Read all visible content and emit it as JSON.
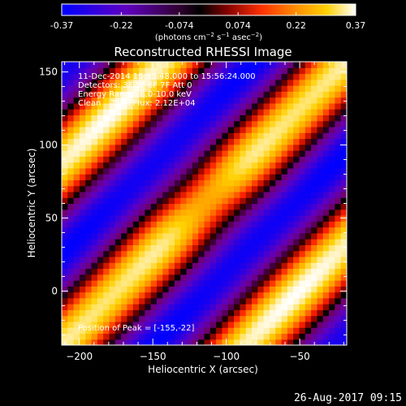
{
  "chart_data": {
    "type": "heatmap",
    "title": "Reconstructed RHESSI Image",
    "xlabel": "Heliocentric X (arcsec)",
    "ylabel": "Heliocentric Y (arcsec)",
    "xlim": [
      -212,
      -18
    ],
    "ylim": [
      -37,
      157
    ],
    "x_ticks": [
      -200,
      -150,
      -100,
      -50
    ],
    "y_ticks": [
      0,
      50,
      100,
      150
    ],
    "colorbar": {
      "ticks": [
        "-0.37",
        "-0.22",
        "-0.074",
        "0.074",
        "0.22",
        "0.37"
      ],
      "tick_values": [
        -0.37,
        -0.22,
        -0.074,
        0.074,
        0.22,
        0.37
      ],
      "range": [
        -0.37,
        0.37
      ],
      "unit_label": "(photons cm",
      "unit_sup1": "−2",
      "unit_mid": " s",
      "unit_sup2": "−1",
      "unit_mid2": " asec",
      "unit_sup3": "−2",
      "unit_end": ")"
    },
    "annotations": {
      "time": "11-Dec-2014 15:55:48.000 to 15:56:24.000",
      "detectors": "Detectors: 3F 5F 6F 7F Att 0",
      "energy": "Energy Range: 6.0-10.0 keV",
      "clean": "Clean    Total Flux: 2.12E+04",
      "peak": "Position of Peak = [-155,-22]"
    },
    "grid": false,
    "colormap": [
      "#0000ff",
      "#6000c0",
      "#700070",
      "#000000",
      "#800000",
      "#ff2000",
      "#ff9000",
      "#ffd000",
      "#ffffff"
    ]
  },
  "footer": "26-Aug-2017 09:15"
}
